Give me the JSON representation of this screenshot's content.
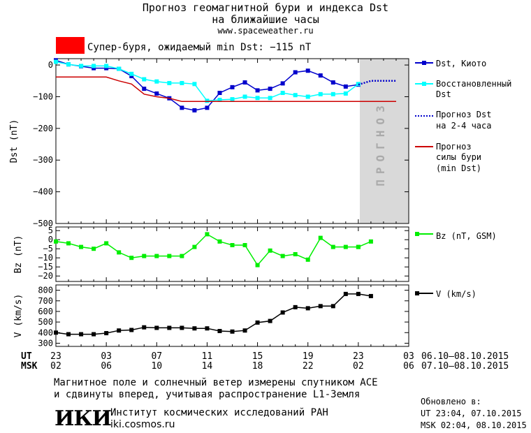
{
  "header": {
    "title_line1": "Прогноз геомагнитной бури и индекса Dst",
    "title_line2": "на ближайшие часы",
    "url": "www.spaceweather.ru",
    "alert_text": "Супер-буря, ожидаемый min Dst: −115 nT",
    "alert_color": "#ff0000"
  },
  "chart_data": [
    {
      "type": "line",
      "ylabel": "Dst (nT)",
      "ylim": [
        -500,
        20
      ],
      "yticks": [
        0,
        -100,
        -200,
        -300,
        -400,
        -500
      ],
      "ytick_labels": [
        "0",
        "−100",
        "−200",
        "−300",
        "−400",
        "−500"
      ],
      "forecast_band_label": "ПРОГНОЗ",
      "forecast_band_color": "#d9d9d9",
      "series": [
        {
          "name": "Dst, Киото",
          "color": "#0000cc",
          "marker": "square",
          "x": [
            0,
            1,
            2,
            3,
            4,
            5,
            6,
            7,
            8,
            9,
            10,
            11,
            12,
            13,
            14,
            15,
            16,
            17,
            18,
            19,
            20,
            21,
            22,
            23,
            24
          ],
          "values": [
            15,
            2,
            -4,
            -10,
            -10,
            -12,
            -35,
            -75,
            -90,
            -105,
            -135,
            -143,
            -135,
            -88,
            -70,
            -55,
            -80,
            -75,
            -58,
            -23,
            -18,
            -33,
            -55,
            -68,
            -62
          ]
        },
        {
          "name": "Восстановленный Dst",
          "color": "#00ffff",
          "marker": "square",
          "x": [
            0,
            1,
            2,
            3,
            4,
            5,
            6,
            7,
            8,
            9,
            10,
            11,
            12,
            13,
            14,
            15,
            16,
            17,
            18,
            19,
            20,
            21,
            22,
            23,
            24
          ],
          "values": [
            10,
            2,
            -3,
            -3,
            -3,
            -12,
            -28,
            -45,
            -52,
            -57,
            -57,
            -60,
            -113,
            -110,
            -108,
            -100,
            -104,
            -104,
            -88,
            -95,
            -100,
            -92,
            -92,
            -90,
            -60
          ]
        },
        {
          "name": "Прогноз Dst на 2-4 часа",
          "color": "#0000cc",
          "style": "dotted",
          "x": [
            24,
            25,
            26,
            27
          ],
          "values": [
            -62,
            -50,
            -50,
            -50
          ]
        },
        {
          "name": "Прогноз силы бури (min Dst)",
          "color": "#cc0000",
          "style": "line",
          "x": [
            -4,
            4,
            5,
            6,
            7,
            8,
            9,
            10,
            11,
            12,
            13,
            14,
            15,
            16,
            17,
            18,
            19,
            20,
            21,
            22,
            23,
            24,
            25,
            26,
            27
          ],
          "values": [
            -38,
            -38,
            -50,
            -60,
            -92,
            -100,
            -105,
            -115,
            -115,
            -115,
            -115,
            -115,
            -115,
            -115,
            -115,
            -115,
            -115,
            -115,
            -115,
            -115,
            -115,
            -115,
            -115,
            -115,
            -115
          ]
        }
      ]
    },
    {
      "type": "line",
      "ylabel": "Bz (nT)",
      "ylim": [
        -23,
        7
      ],
      "yticks": [
        5,
        0,
        -5,
        -10,
        -15,
        -20
      ],
      "ytick_labels": [
        "5",
        "0",
        "−5",
        "−10",
        "−15",
        "−20"
      ],
      "series": [
        {
          "name": "Bz (nT, GSM)",
          "color": "#00ee00",
          "marker": "square",
          "x": [
            0,
            1,
            2,
            3,
            4,
            5,
            6,
            7,
            8,
            9,
            10,
            11,
            12,
            13,
            14,
            15,
            16,
            17,
            18,
            19,
            20,
            21,
            22,
            23,
            24
          ],
          "values": [
            -1,
            -2,
            -4,
            -5,
            -2,
            -7,
            -10,
            -9,
            -9,
            -9,
            -9,
            -4,
            3,
            -1,
            -3,
            -3,
            -14,
            -6,
            -9,
            -8,
            -11,
            1,
            -4,
            -4,
            -4
          ]
        },
        {
          "name": "",
          "color": "#00ee00",
          "marker": "square",
          "x": [
            24,
            25
          ],
          "values": [
            -4,
            -1
          ]
        }
      ]
    },
    {
      "type": "line",
      "ylabel": "V (km/s)",
      "ylim": [
        270,
        850
      ],
      "yticks": [
        800,
        700,
        600,
        500,
        400,
        300
      ],
      "ytick_labels": [
        "800",
        "700",
        "600",
        "500",
        "400",
        "300"
      ],
      "series": [
        {
          "name": "V (km/s)",
          "color": "#000000",
          "marker": "square",
          "x": [
            0,
            1,
            2,
            3,
            4,
            5,
            6,
            7,
            8,
            9,
            10,
            11,
            12,
            13,
            14,
            15,
            16,
            17,
            18,
            19,
            20,
            21,
            22,
            23,
            24,
            25
          ],
          "values": [
            400,
            385,
            385,
            385,
            395,
            420,
            425,
            450,
            445,
            445,
            445,
            440,
            440,
            415,
            410,
            420,
            495,
            510,
            590,
            640,
            630,
            650,
            650,
            765,
            765,
            745
          ]
        }
      ]
    }
  ],
  "xaxis": {
    "ut_label": "UT",
    "msk_label": "MSK",
    "ut_ticks": [
      "23",
      "03",
      "07",
      "11",
      "15",
      "19",
      "23",
      "03"
    ],
    "msk_ticks": [
      "02",
      "06",
      "10",
      "14",
      "18",
      "22",
      "02",
      "06"
    ],
    "ut_range": "06.10–08.10.2015",
    "msk_range": "07.10–08.10.2015"
  },
  "legend": {
    "dst_kyoto": "Dst, Киото",
    "recon_line1": "Восстановленный",
    "recon_line2": "Dst",
    "forecast_line1": "Прогноз Dst",
    "forecast_line2": "на 2-4 часа",
    "storm_line1": "Прогноз",
    "storm_line2": "силы бури",
    "storm_line3": "(min Dst)",
    "bz": "Bz (nT, GSM)",
    "v": "V (km/s)"
  },
  "footer": {
    "note_line1": "Магнитное поле и солнечный ветер измерены спутником ACE",
    "note_line2": "и сдвинуты вперед, учитывая распространение L1-Земля",
    "logo_text": "ИКИ",
    "institute": "Институт космических исследований РАН",
    "site": "iki.cosmos.ru",
    "updated_label": "Обновлено в:",
    "updated_ut": "UT  23:04, 07.10.2015",
    "updated_msk": "MSK 02:04, 08.10.2015"
  }
}
